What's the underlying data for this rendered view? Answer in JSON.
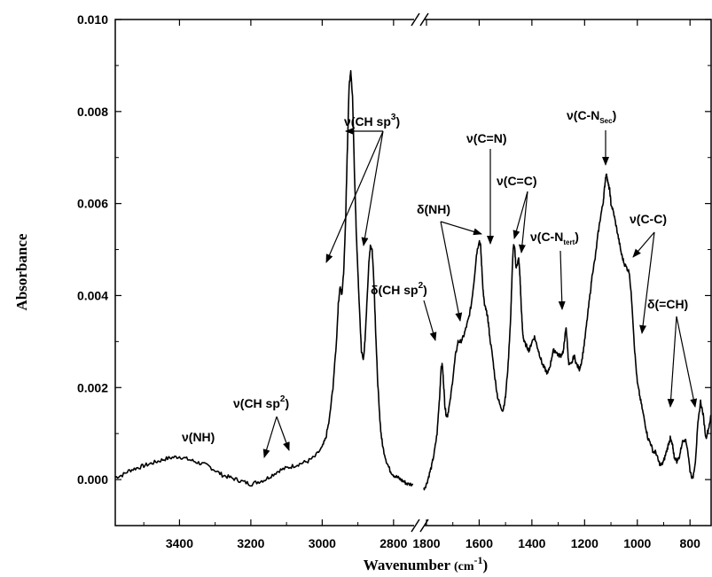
{
  "chart_data": {
    "type": "line",
    "xlabel": "Wavenumber",
    "xlabel_unit": "(cm",
    "xlabel_unit_exp": "-1",
    "xlabel_unit_close": ")",
    "ylabel": "Absorbance",
    "x_reversed": true,
    "x_axis_break": [
      2740,
      1810
    ],
    "xlim_left": [
      3580,
      2740
    ],
    "xlim_right": [
      1810,
      720
    ],
    "ylim": [
      -0.001,
      0.01
    ],
    "x_ticks": [
      3400,
      3200,
      3000,
      2800,
      1800,
      1600,
      1400,
      1200,
      1000,
      800
    ],
    "x_tick_labels": [
      "3400",
      "3200",
      "3000",
      "2800",
      "1800",
      "1600",
      "1400",
      "1200",
      "1000",
      "800"
    ],
    "y_ticks": [
      0.0,
      0.002,
      0.004,
      0.006,
      0.008,
      0.01
    ],
    "y_tick_labels": [
      "0.000",
      "0.002",
      "0.004",
      "0.006",
      "0.008",
      "0.010"
    ],
    "grid": false,
    "legend": "none",
    "series": [
      {
        "segment": "left",
        "x": [
          3580,
          3560,
          3540,
          3520,
          3500,
          3480,
          3460,
          3440,
          3420,
          3400,
          3380,
          3360,
          3340,
          3320,
          3300,
          3280,
          3260,
          3240,
          3220,
          3200,
          3180,
          3160,
          3140,
          3120,
          3100,
          3080,
          3060,
          3040,
          3020,
          3000,
          2990,
          2980,
          2970,
          2960,
          2955,
          2950,
          2945,
          2940,
          2935,
          2930,
          2925,
          2920,
          2915,
          2910,
          2905,
          2900,
          2895,
          2890,
          2885,
          2880,
          2875,
          2870,
          2865,
          2860,
          2855,
          2850,
          2845,
          2840,
          2835,
          2830,
          2820,
          2810,
          2800,
          2790,
          2780,
          2770,
          2760,
          2745
        ],
        "y": [
          5e-05,
          0.0001,
          0.0002,
          0.00025,
          0.0003,
          0.00035,
          0.0004,
          0.00045,
          0.00048,
          0.0005,
          0.00045,
          0.0004,
          0.00035,
          0.0003,
          0.0002,
          0.0001,
          5e-05,
          0.0,
          -5e-05,
          -0.0001,
          -5e-05,
          0.0,
          0.0001,
          0.0002,
          0.00025,
          0.0003,
          0.00035,
          0.0004,
          0.0005,
          0.0007,
          0.0009,
          0.0013,
          0.002,
          0.003,
          0.0038,
          0.0042,
          0.004,
          0.0045,
          0.0055,
          0.007,
          0.0085,
          0.0089,
          0.0083,
          0.0068,
          0.0055,
          0.0045,
          0.0036,
          0.0028,
          0.0026,
          0.003,
          0.0038,
          0.0046,
          0.0051,
          0.005,
          0.0043,
          0.0032,
          0.0022,
          0.0015,
          0.001,
          0.0007,
          0.0004,
          0.0002,
          0.0001,
          5e-05,
          0.0,
          -5e-05,
          -0.0001,
          -0.0001
        ]
      },
      {
        "segment": "right",
        "x": [
          1810,
          1800,
          1790,
          1780,
          1770,
          1760,
          1750,
          1745,
          1740,
          1735,
          1730,
          1725,
          1720,
          1710,
          1700,
          1690,
          1680,
          1670,
          1660,
          1650,
          1640,
          1630,
          1620,
          1610,
          1600,
          1595,
          1590,
          1585,
          1580,
          1575,
          1570,
          1565,
          1560,
          1550,
          1540,
          1530,
          1520,
          1510,
          1500,
          1490,
          1480,
          1475,
          1470,
          1465,
          1460,
          1455,
          1450,
          1445,
          1440,
          1435,
          1430,
          1420,
          1410,
          1400,
          1390,
          1380,
          1370,
          1360,
          1350,
          1340,
          1330,
          1320,
          1310,
          1300,
          1290,
          1280,
          1275,
          1270,
          1265,
          1260,
          1250,
          1240,
          1230,
          1220,
          1210,
          1200,
          1190,
          1180,
          1170,
          1160,
          1150,
          1140,
          1130,
          1125,
          1120,
          1115,
          1110,
          1105,
          1100,
          1090,
          1080,
          1070,
          1060,
          1050,
          1040,
          1030,
          1020,
          1010,
          1000,
          990,
          980,
          970,
          960,
          950,
          940,
          930,
          920,
          910,
          900,
          890,
          880,
          875,
          870,
          865,
          860,
          850,
          840,
          830,
          820,
          810,
          800,
          790,
          780,
          770,
          760,
          750,
          740,
          730,
          720
        ],
        "y": [
          -0.0002,
          -0.0001,
          0.0001,
          0.0003,
          0.0006,
          0.001,
          0.0018,
          0.0024,
          0.0025,
          0.0021,
          0.0016,
          0.0014,
          0.0014,
          0.0017,
          0.0022,
          0.0027,
          0.003,
          0.003,
          0.0031,
          0.0033,
          0.0035,
          0.0038,
          0.0043,
          0.0049,
          0.0052,
          0.0051,
          0.0046,
          0.0041,
          0.0038,
          0.0037,
          0.0036,
          0.0034,
          0.0031,
          0.0027,
          0.0022,
          0.0018,
          0.0016,
          0.0015,
          0.0018,
          0.0025,
          0.0036,
          0.0045,
          0.0051,
          0.005,
          0.0046,
          0.0047,
          0.0048,
          0.0044,
          0.0037,
          0.0032,
          0.003,
          0.0029,
          0.0028,
          0.003,
          0.0031,
          0.0029,
          0.0027,
          0.0025,
          0.0024,
          0.0023,
          0.0025,
          0.0028,
          0.0028,
          0.0027,
          0.0027,
          0.0028,
          0.0031,
          0.0033,
          0.0029,
          0.0025,
          0.0025,
          0.0027,
          0.0025,
          0.0024,
          0.0026,
          0.003,
          0.0035,
          0.004,
          0.0045,
          0.0048,
          0.0053,
          0.0057,
          0.006,
          0.0063,
          0.0066,
          0.0066,
          0.0064,
          0.0063,
          0.006,
          0.0058,
          0.0055,
          0.0052,
          0.0049,
          0.0047,
          0.0046,
          0.0045,
          0.0038,
          0.0028,
          0.0021,
          0.0018,
          0.0015,
          0.0012,
          0.0009,
          0.0008,
          0.0006,
          0.0006,
          0.0004,
          0.0003,
          0.0004,
          0.0006,
          0.0008,
          0.0009,
          0.0008,
          0.0007,
          0.0005,
          0.0004,
          0.0005,
          0.0008,
          0.0009,
          0.0007,
          0.0002,
          0.0,
          0.0004,
          0.0012,
          0.0017,
          0.0014,
          0.0009,
          0.0011,
          0.0014
        ]
      }
    ]
  },
  "annotations": [
    {
      "id": "nh-stretch",
      "base": "ν(NH)",
      "sup": "",
      "sub": "",
      "tail": ""
    },
    {
      "id": "ch-sp2-stretch",
      "base": "ν(CH sp",
      "sup": "2",
      "sub": "",
      "tail": ")"
    },
    {
      "id": "ch-sp3-stretch",
      "base": "ν(CH sp",
      "sup": "3",
      "sub": "",
      "tail": ")"
    },
    {
      "id": "ch-sp2-bend",
      "base": "δ(CH sp",
      "sup": "2",
      "sub": "",
      "tail": ")"
    },
    {
      "id": "nh-bend",
      "base": "δ(NH)",
      "sup": "",
      "sub": "",
      "tail": ""
    },
    {
      "id": "cn-double",
      "base": "ν(C=N)",
      "sup": "",
      "sub": "",
      "tail": ""
    },
    {
      "id": "cc-double",
      "base": "ν(C=C)",
      "sup": "",
      "sub": "",
      "tail": ""
    },
    {
      "id": "cn-tert",
      "base": "ν(C-N",
      "sup": "",
      "sub": "tert",
      "tail": ")"
    },
    {
      "id": "cn-sec",
      "base": "ν(C-N",
      "sup": "",
      "sub": "Sec",
      "tail": ")"
    },
    {
      "id": "cc-single",
      "base": "ν(C-C)",
      "sup": "",
      "sub": "",
      "tail": ""
    },
    {
      "id": "eq-ch-bend",
      "base": "δ(=CH)",
      "sup": "",
      "sub": "",
      "tail": ""
    }
  ]
}
